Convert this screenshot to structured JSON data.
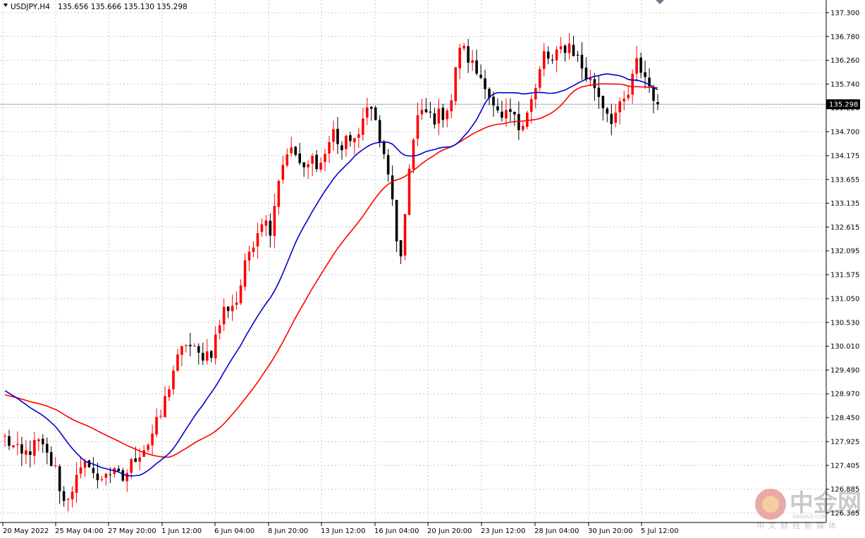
{
  "header": {
    "symbol": "USDJPY,H4",
    "ohlc": "135.656 135.666 135.130 135.298"
  },
  "current_price_label": "135.298",
  "watermark": {
    "text_cn": "中金网",
    "domain": "CNGOLD.COM",
    "tagline": "中文财经新媒体"
  },
  "colors": {
    "background": "#ffffff",
    "grid": "#c8c8c8",
    "bull": "#ff0000",
    "bear": "#000000",
    "ma_fast": "#0000cc",
    "ma_slow": "#ff0000",
    "price_label_bg": "#000000"
  },
  "chart_data": {
    "type": "candlestick",
    "timeframe": "H4",
    "ylim": [
      126.1,
      137.45
    ],
    "y_ticks": [
      "137.300",
      "136.780",
      "136.260",
      "135.740",
      "135.220",
      "134.700",
      "134.175",
      "133.655",
      "133.135",
      "132.615",
      "132.095",
      "131.575",
      "131.050",
      "130.530",
      "130.010",
      "129.490",
      "128.970",
      "128.450",
      "127.925",
      "127.405",
      "126.885",
      "126.365"
    ],
    "x_labels": [
      "20 May 2022",
      "25 May 04:00",
      "27 May 20:00",
      "1 Jun 12:00",
      "6 Jun 04:00",
      "8 Jun 20:00",
      "13 Jun 12:00",
      "16 Jun 04:00",
      "20 Jun 20:00",
      "23 Jun 12:00",
      "28 Jun 04:00",
      "30 Jun 20:00",
      "5 Jul 12:00"
    ],
    "current_price": 135.298,
    "waypoints": [
      [
        0,
        128.0
      ],
      [
        4,
        127.6
      ],
      [
        8,
        127.9
      ],
      [
        12,
        127.3
      ],
      [
        14,
        126.6
      ],
      [
        17,
        127.1
      ],
      [
        20,
        127.5
      ],
      [
        22,
        127.0
      ],
      [
        24,
        127.3
      ],
      [
        26,
        127.2
      ],
      [
        28,
        127.1
      ],
      [
        31,
        127.6
      ],
      [
        34,
        127.9
      ],
      [
        37,
        128.5
      ],
      [
        40,
        129.5
      ],
      [
        43,
        130.1
      ],
      [
        46,
        129.8
      ],
      [
        49,
        129.9
      ],
      [
        52,
        130.8
      ],
      [
        55,
        131.0
      ],
      [
        58,
        132.1
      ],
      [
        61,
        132.8
      ],
      [
        63,
        132.6
      ],
      [
        65,
        133.7
      ],
      [
        67,
        134.3
      ],
      [
        69,
        134.2
      ],
      [
        71,
        133.8
      ],
      [
        73,
        134.1
      ],
      [
        75,
        134.0
      ],
      [
        78,
        134.7
      ],
      [
        80,
        134.3
      ],
      [
        82,
        134.6
      ],
      [
        84,
        134.5
      ],
      [
        86,
        135.4
      ],
      [
        88,
        134.9
      ],
      [
        90,
        134.1
      ],
      [
        92,
        133.3
      ],
      [
        93,
        132.2
      ],
      [
        94,
        131.8
      ],
      [
        96,
        134.0
      ],
      [
        98,
        135.0
      ],
      [
        100,
        135.1
      ],
      [
        102,
        135.0
      ],
      [
        104,
        135.1
      ],
      [
        106,
        135.4
      ],
      [
        108,
        136.6
      ],
      [
        110,
        136.3
      ],
      [
        112,
        136.0
      ],
      [
        114,
        135.8
      ],
      [
        116,
        135.2
      ],
      [
        118,
        134.9
      ],
      [
        120,
        135.1
      ],
      [
        122,
        134.8
      ],
      [
        124,
        135.2
      ],
      [
        126,
        135.6
      ],
      [
        128,
        136.4
      ],
      [
        130,
        136.2
      ],
      [
        132,
        136.5
      ],
      [
        134,
        136.6
      ],
      [
        136,
        136.3
      ],
      [
        138,
        135.9
      ],
      [
        140,
        135.7
      ],
      [
        142,
        135.3
      ],
      [
        144,
        135.0
      ],
      [
        146,
        135.2
      ],
      [
        148,
        135.5
      ],
      [
        150,
        136.2
      ],
      [
        152,
        135.9
      ],
      [
        154,
        135.5
      ],
      [
        155,
        135.3
      ]
    ],
    "series": [
      {
        "name": "",
        "kind": "candles",
        "count": 156,
        "start_open": 128.05
      },
      {
        "name": "",
        "kind": "moving_average",
        "period": 20,
        "color": "#0000cc"
      },
      {
        "name": "",
        "kind": "moving_average",
        "period": 40,
        "color": "#ff0000"
      }
    ],
    "grid": true
  }
}
